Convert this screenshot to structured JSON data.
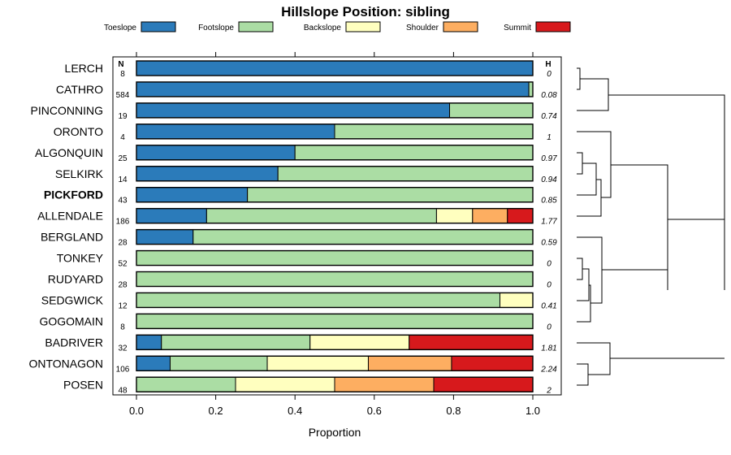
{
  "chart_data": {
    "type": "bar",
    "subtype": "stacked-horizontal-proportion",
    "title": "Hillslope Position: sibling",
    "xlabel": "Proportion",
    "xlim": [
      0,
      1
    ],
    "xticks": [
      0.0,
      0.2,
      0.4,
      0.6,
      0.8,
      1.0
    ],
    "xtick_labels": [
      "0.0",
      "0.2",
      "0.4",
      "0.6",
      "0.8",
      "1.0"
    ],
    "n_header": "N",
    "h_header": "H",
    "legend": [
      {
        "name": "Toeslope",
        "color": "#2b7bba"
      },
      {
        "name": "Footslope",
        "color": "#abdda4"
      },
      {
        "name": "Backslope",
        "color": "#ffffbf"
      },
      {
        "name": "Shoulder",
        "color": "#fdae61"
      },
      {
        "name": "Summit",
        "color": "#d7191c"
      }
    ],
    "rows": [
      {
        "label": "LERCH",
        "n": "8",
        "h": "0",
        "bold": false,
        "values": [
          1.0,
          0,
          0,
          0,
          0
        ]
      },
      {
        "label": "CATHRO",
        "n": "584",
        "h": "0.08",
        "bold": false,
        "values": [
          0.99,
          0.01,
          0,
          0,
          0
        ]
      },
      {
        "label": "PINCONNING",
        "n": "19",
        "h": "0.74",
        "bold": false,
        "values": [
          0.79,
          0.21,
          0,
          0,
          0
        ]
      },
      {
        "label": "ORONTO",
        "n": "4",
        "h": "1",
        "bold": false,
        "values": [
          0.5,
          0.5,
          0,
          0,
          0
        ]
      },
      {
        "label": "ALGONQUIN",
        "n": "25",
        "h": "0.97",
        "bold": false,
        "values": [
          0.4,
          0.6,
          0,
          0,
          0
        ]
      },
      {
        "label": "SELKIRK",
        "n": "14",
        "h": "0.94",
        "bold": false,
        "values": [
          0.357,
          0.643,
          0,
          0,
          0
        ]
      },
      {
        "label": "PICKFORD",
        "n": "43",
        "h": "0.85",
        "bold": true,
        "values": [
          0.28,
          0.72,
          0,
          0,
          0
        ]
      },
      {
        "label": "ALLENDALE",
        "n": "186",
        "h": "1.77",
        "bold": false,
        "values": [
          0.177,
          0.58,
          0.091,
          0.088,
          0.064
        ]
      },
      {
        "label": "BERGLAND",
        "n": "28",
        "h": "0.59",
        "bold": false,
        "values": [
          0.143,
          0.857,
          0,
          0,
          0
        ]
      },
      {
        "label": "TONKEY",
        "n": "52",
        "h": "0",
        "bold": false,
        "values": [
          0,
          1.0,
          0,
          0,
          0
        ]
      },
      {
        "label": "RUDYARD",
        "n": "28",
        "h": "0",
        "bold": false,
        "values": [
          0,
          1.0,
          0,
          0,
          0
        ]
      },
      {
        "label": "SEDGWICK",
        "n": "12",
        "h": "0.41",
        "bold": false,
        "values": [
          0,
          0.917,
          0.083,
          0,
          0
        ]
      },
      {
        "label": "GOGOMAIN",
        "n": "8",
        "h": "0",
        "bold": false,
        "values": [
          0,
          1.0,
          0,
          0,
          0
        ]
      },
      {
        "label": "BADRIVER",
        "n": "32",
        "h": "1.81",
        "bold": false,
        "values": [
          0.063,
          0.375,
          0.25,
          0,
          0.312
        ]
      },
      {
        "label": "ONTONAGON",
        "n": "106",
        "h": "2.24",
        "bold": false,
        "values": [
          0.085,
          0.245,
          0.255,
          0.21,
          0.205
        ]
      },
      {
        "label": "POSEN",
        "n": "48",
        "h": "2",
        "bold": false,
        "values": [
          0,
          0.25,
          0.25,
          0.25,
          0.25
        ]
      }
    ]
  }
}
